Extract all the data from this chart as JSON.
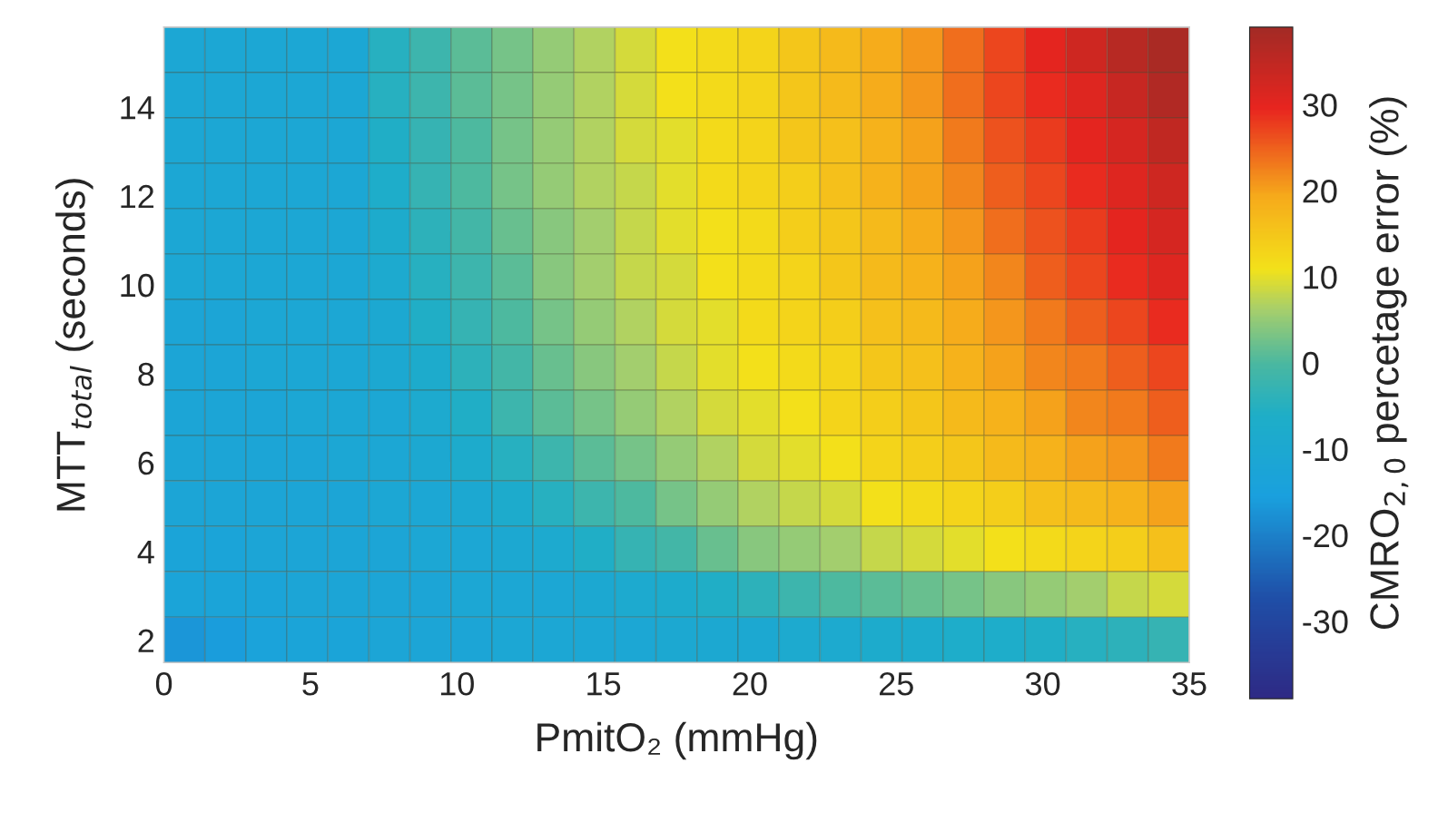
{
  "chart_data": {
    "type": "heatmap",
    "xlabel": "PmitO₂ (mmHg)",
    "ylabel": "MTT$_{total}$ (seconds)",
    "clabel": "CMRO$_{2,0}$ percetage error (%)",
    "xlim": [
      0,
      35
    ],
    "xticks": [
      0,
      5,
      10,
      15,
      20,
      25,
      30,
      35
    ],
    "ylim": [
      1.5,
      15.8
    ],
    "yticks": [
      2,
      4,
      6,
      8,
      10,
      12,
      14
    ],
    "clim": [
      -39,
      39
    ],
    "cticks": [
      -30,
      -20,
      -10,
      0,
      10,
      20,
      30
    ],
    "cells": [
      [
        -11,
        -11,
        -11,
        -11,
        -11,
        -5,
        -2,
        1,
        3,
        5,
        7,
        9,
        11,
        12,
        13,
        15,
        17,
        19,
        21,
        24,
        27,
        30,
        33,
        36,
        38
      ],
      [
        -11,
        -11,
        -11,
        -11,
        -11,
        -5,
        -2,
        1,
        3,
        5,
        7,
        9,
        11,
        12,
        13,
        15,
        17,
        19,
        21,
        24,
        27,
        29,
        31,
        34,
        37
      ],
      [
        -11,
        -11,
        -11,
        -11,
        -11,
        -6,
        -3,
        0,
        3,
        5,
        7,
        9,
        10,
        12,
        13,
        15,
        16,
        18,
        20,
        23,
        26,
        28,
        30,
        32,
        35
      ],
      [
        -11,
        -11,
        -11,
        -11,
        -11,
        -7,
        -3,
        0,
        3,
        5,
        7,
        8,
        10,
        12,
        13,
        14,
        16,
        18,
        20,
        22,
        25,
        27,
        29,
        31,
        33
      ],
      [
        -11,
        -11,
        -11,
        -11,
        -11,
        -8,
        -4,
        -1,
        2,
        4,
        6,
        8,
        10,
        11,
        12,
        14,
        15,
        17,
        19,
        21,
        24,
        26,
        28,
        30,
        32
      ],
      [
        -11,
        -11,
        -11,
        -11,
        -11,
        -9,
        -5,
        -2,
        1,
        4,
        6,
        8,
        9,
        11,
        12,
        13,
        15,
        17,
        18,
        20,
        22,
        25,
        27,
        29,
        31
      ],
      [
        -12,
        -12,
        -11,
        -11,
        -11,
        -10,
        -6,
        -3,
        0,
        3,
        5,
        7,
        9,
        10,
        12,
        13,
        14,
        16,
        17,
        19,
        21,
        23,
        25,
        27,
        29
      ],
      [
        -12,
        -12,
        -11,
        -11,
        -11,
        -10,
        -8,
        -4,
        -1,
        2,
        4,
        6,
        8,
        10,
        11,
        12,
        13,
        15,
        16,
        18,
        20,
        22,
        23,
        25,
        27
      ],
      [
        -12,
        -12,
        -12,
        -11,
        -11,
        -11,
        -9,
        -6,
        -2,
        1,
        3,
        5,
        7,
        9,
        10,
        11,
        13,
        14,
        15,
        17,
        18,
        20,
        22,
        23,
        25
      ],
      [
        -12,
        -12,
        -12,
        -12,
        -11,
        -11,
        -10,
        -8,
        -5,
        -2,
        1,
        3,
        5,
        7,
        9,
        10,
        11,
        13,
        14,
        15,
        17,
        18,
        20,
        21,
        23
      ],
      [
        -12,
        -12,
        -12,
        -12,
        -12,
        -11,
        -11,
        -10,
        -8,
        -5,
        -2,
        0,
        3,
        5,
        7,
        8,
        9,
        11,
        12,
        13,
        14,
        16,
        17,
        18,
        20
      ],
      [
        -13,
        -13,
        -12,
        -12,
        -12,
        -12,
        -11,
        -11,
        -10,
        -9,
        -6,
        -3,
        -1,
        2,
        4,
        5,
        6,
        8,
        9,
        10,
        11,
        12,
        13,
        14,
        16
      ],
      [
        -13,
        -13,
        -13,
        -12,
        -12,
        -12,
        -12,
        -11,
        -11,
        -11,
        -10,
        -9,
        -8,
        -6,
        -4,
        -2,
        0,
        1,
        2,
        3,
        4,
        5,
        6,
        8,
        9
      ],
      [
        -17,
        -16,
        -14,
        -13,
        -13,
        -12,
        -12,
        -12,
        -11,
        -11,
        -11,
        -11,
        -10,
        -10,
        -10,
        -9,
        -9,
        -8,
        -8,
        -7,
        -7,
        -6,
        -5,
        -4,
        -3
      ]
    ]
  }
}
